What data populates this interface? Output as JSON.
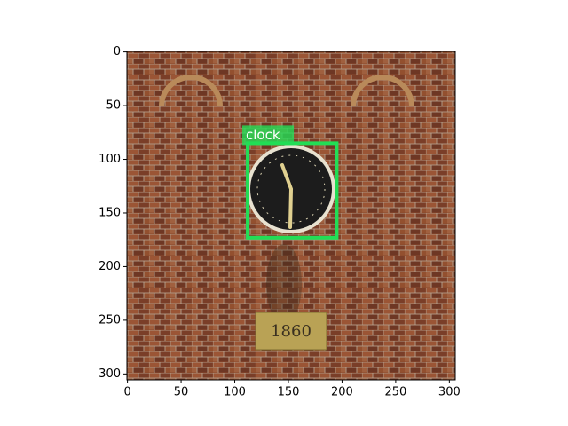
{
  "chart_data": {
    "type": "image",
    "xlim": [
      -0.5,
      305.5
    ],
    "ylim": [
      305.5,
      -0.5
    ],
    "xticks": [
      0,
      50,
      100,
      150,
      200,
      250,
      300
    ],
    "yticks": [
      0,
      50,
      100,
      150,
      200,
      250,
      300
    ],
    "image_text": "1860",
    "boxes": [
      {
        "label": "clock",
        "color": "#22dd55",
        "x": [
          112,
          195
        ],
        "y": [
          85,
          173
        ]
      }
    ]
  }
}
